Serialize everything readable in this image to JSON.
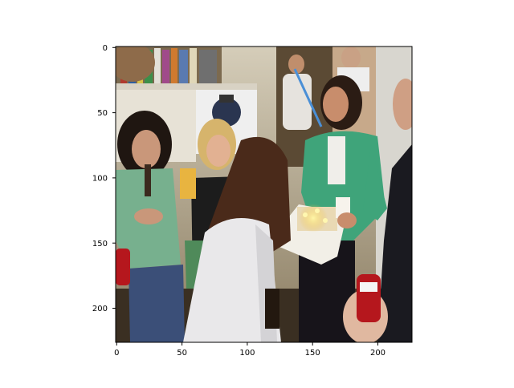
{
  "figure": {
    "background": "#ffffff",
    "axes_color": "#000000"
  },
  "image_panel": {
    "description_tag": "party-photo",
    "x_ticks": [
      "0",
      "50",
      "100",
      "150",
      "200"
    ],
    "y_ticks": [
      "0",
      "50",
      "100",
      "150",
      "200"
    ],
    "x_range": [
      0,
      227
    ],
    "y_range": [
      0,
      227
    ],
    "photo_colors": {
      "wall": "#c9c1ad",
      "bookshelf": "#7c6a4f",
      "floor": "#3a2f22",
      "doorway": "#5b4a34",
      "green_shirt": "#3fa47a",
      "white_jacket": "#e9e8ea",
      "dark_hair": "#2b1c14",
      "blonde_hair": "#d6b46c",
      "jeans": "#3b4f78",
      "cake_box": "#f2efe7",
      "can_red": "#b5171d"
    }
  }
}
